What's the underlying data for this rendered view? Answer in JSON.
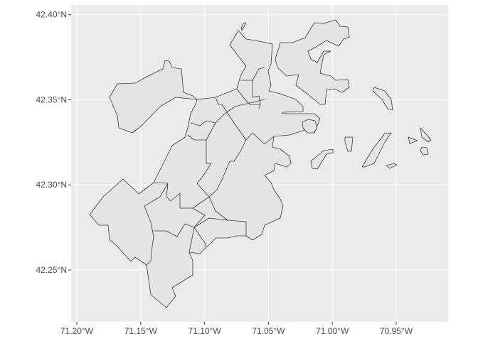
{
  "chart_data": {
    "type": "map",
    "xlabel": "",
    "ylabel": "",
    "x_ticks": [
      {
        "value": -71.2,
        "label": "71.20°W"
      },
      {
        "value": -71.15,
        "label": "71.15°W"
      },
      {
        "value": -71.1,
        "label": "71.10°W"
      },
      {
        "value": -71.05,
        "label": "71.05°W"
      },
      {
        "value": -71.0,
        "label": "71.00°W"
      },
      {
        "value": -70.95,
        "label": "70.95°W"
      }
    ],
    "y_ticks": [
      {
        "value": 42.4,
        "label": "42.40°N"
      },
      {
        "value": 42.35,
        "label": "42.35°N"
      },
      {
        "value": 42.3,
        "label": "42.30°N"
      },
      {
        "value": 42.25,
        "label": "42.25°N"
      }
    ],
    "xlim": [
      -71.205,
      -70.91
    ],
    "ylim": [
      42.222,
      42.405
    ],
    "grid": true,
    "colors": {
      "panel": "#ebebeb",
      "grid": "#ffffff",
      "fill": "#e4e4e4",
      "stroke": "#3a3a3a"
    }
  }
}
